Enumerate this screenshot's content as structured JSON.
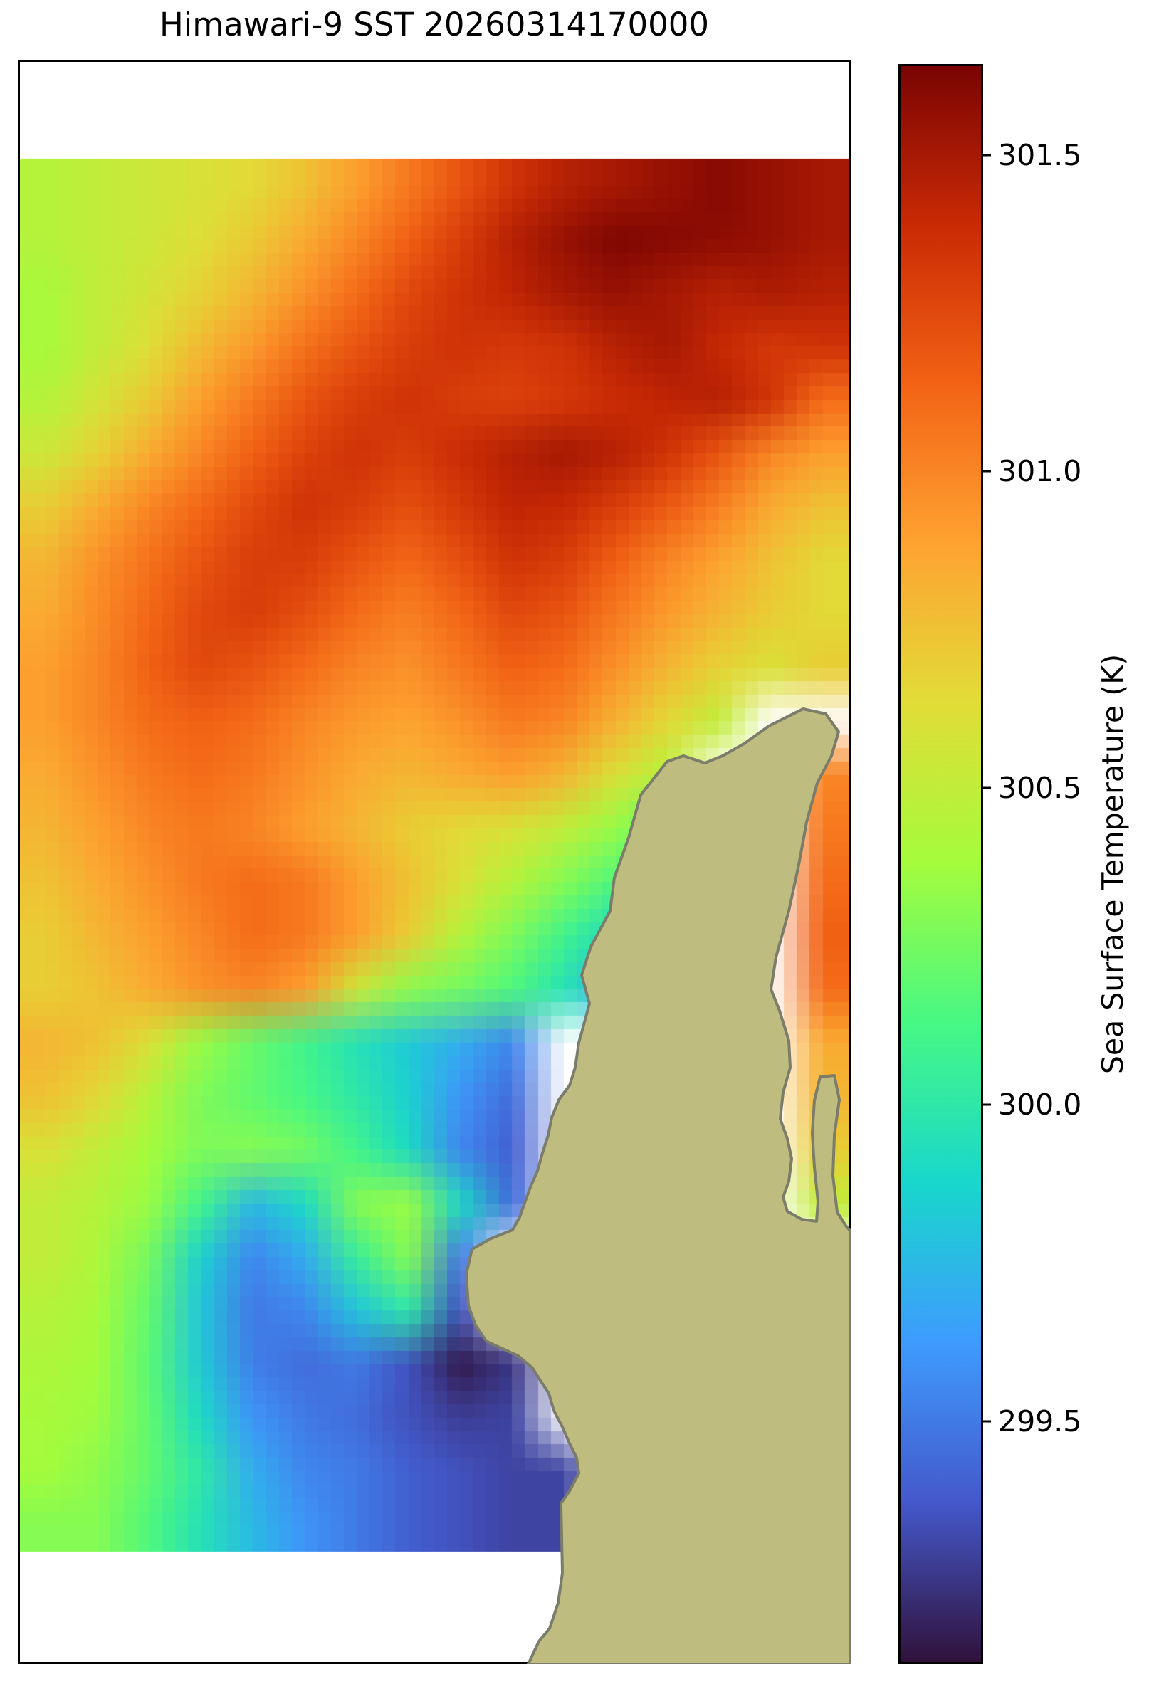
{
  "figure": {
    "title": "Himawari-9 SST 20260314170000",
    "background_color": "#ffffff"
  },
  "colorbar": {
    "label": "Sea Surface Temperature (K)",
    "vmin": 299.12,
    "vmax": 301.64,
    "ticks": [
      301.5,
      301.0,
      300.5,
      300.0,
      299.5
    ],
    "tick_labels": [
      "301.5",
      "301.0",
      "300.5",
      "300.0",
      "299.5"
    ],
    "colormap": "turbo",
    "colormap_stops": [
      {
        "f": 0.0,
        "color": "#30123b"
      },
      {
        "f": 0.1,
        "color": "#4458cb"
      },
      {
        "f": 0.2,
        "color": "#3e9bfe"
      },
      {
        "f": 0.3,
        "color": "#18d7cc"
      },
      {
        "f": 0.4,
        "color": "#46f884"
      },
      {
        "f": 0.5,
        "color": "#a4fc3c"
      },
      {
        "f": 0.6,
        "color": "#e1dd37"
      },
      {
        "f": 0.7,
        "color": "#fea331"
      },
      {
        "f": 0.8,
        "color": "#f36315"
      },
      {
        "f": 0.9,
        "color": "#ca2a04"
      },
      {
        "f": 1.0,
        "color": "#7a0403"
      }
    ]
  },
  "map": {
    "land_fill_color": "#bfbc80",
    "coastline_color": "#7c7c6a",
    "no_data_color": "#ffffff",
    "land_polygon": [
      [
        1128,
        996
      ],
      [
        1160,
        1003
      ],
      [
        1178,
        1028
      ],
      [
        1168,
        1062
      ],
      [
        1148,
        1100
      ],
      [
        1133,
        1155
      ],
      [
        1122,
        1215
      ],
      [
        1108,
        1280
      ],
      [
        1090,
        1345
      ],
      [
        1083,
        1390
      ],
      [
        1095,
        1420
      ],
      [
        1108,
        1462
      ],
      [
        1110,
        1500
      ],
      [
        1100,
        1535
      ],
      [
        1096,
        1572
      ],
      [
        1106,
        1600
      ],
      [
        1112,
        1628
      ],
      [
        1108,
        1660
      ],
      [
        1100,
        1682
      ],
      [
        1106,
        1702
      ],
      [
        1126,
        1713
      ],
      [
        1147,
        1716
      ],
      [
        1149,
        1688
      ],
      [
        1144,
        1640
      ],
      [
        1141,
        1592
      ],
      [
        1144,
        1546
      ],
      [
        1152,
        1513
      ],
      [
        1172,
        1511
      ],
      [
        1179,
        1545
      ],
      [
        1172,
        1595
      ],
      [
        1170,
        1652
      ],
      [
        1176,
        1703
      ],
      [
        1188,
        1722
      ],
      [
        1195,
        1730
      ],
      [
        1195,
        2338
      ],
      [
        742,
        2338
      ],
      [
        757,
        2306
      ],
      [
        772,
        2288
      ],
      [
        784,
        2252
      ],
      [
        790,
        2210
      ],
      [
        788,
        2112
      ],
      [
        800,
        2095
      ],
      [
        813,
        2070
      ],
      [
        810,
        2048
      ],
      [
        800,
        2028
      ],
      [
        790,
        2005
      ],
      [
        778,
        1982
      ],
      [
        771,
        1958
      ],
      [
        758,
        1938
      ],
      [
        748,
        1922
      ],
      [
        728,
        1905
      ],
      [
        695,
        1890
      ],
      [
        683,
        1884
      ],
      [
        668,
        1862
      ],
      [
        658,
        1835
      ],
      [
        655,
        1790
      ],
      [
        663,
        1755
      ],
      [
        690,
        1740
      ],
      [
        720,
        1728
      ],
      [
        730,
        1710
      ],
      [
        737,
        1690
      ],
      [
        745,
        1668
      ],
      [
        755,
        1645
      ],
      [
        762,
        1620
      ],
      [
        770,
        1595
      ],
      [
        775,
        1570
      ],
      [
        785,
        1545
      ],
      [
        800,
        1525
      ],
      [
        808,
        1500
      ],
      [
        813,
        1465
      ],
      [
        820,
        1440
      ],
      [
        828,
        1410
      ],
      [
        817,
        1370
      ],
      [
        830,
        1330
      ],
      [
        857,
        1280
      ],
      [
        863,
        1233
      ],
      [
        883,
        1177
      ],
      [
        900,
        1117
      ],
      [
        937,
        1070
      ],
      [
        960,
        1062
      ],
      [
        990,
        1072
      ],
      [
        1015,
        1062
      ],
      [
        1045,
        1045
      ],
      [
        1080,
        1020
      ]
    ]
  },
  "chart_data": {
    "type": "heatmap",
    "title": "Himawari-9 SST 20260314170000",
    "value_label": "Sea Surface Temperature (K)",
    "units": "K",
    "vmin": 299.12,
    "vmax": 301.64,
    "colormap": "turbo",
    "grid_cols": 16,
    "grid_rows": 26,
    "note": "null = no data (cloud/land mask); land overlay drawn on top",
    "values": [
      [
        300.45,
        300.5,
        300.55,
        300.6,
        300.65,
        300.75,
        300.9,
        301.05,
        301.2,
        301.35,
        301.45,
        301.5,
        301.55,
        301.6,
        301.55,
        301.5
      ],
      [
        300.45,
        300.5,
        300.55,
        300.62,
        300.72,
        300.85,
        301.0,
        301.15,
        301.3,
        301.45,
        301.55,
        301.62,
        301.6,
        301.58,
        301.55,
        301.5
      ],
      [
        300.4,
        300.5,
        300.58,
        300.68,
        300.8,
        300.95,
        301.1,
        301.25,
        301.35,
        301.42,
        301.5,
        301.55,
        301.5,
        301.45,
        301.48,
        301.45
      ],
      [
        300.4,
        300.5,
        300.62,
        300.78,
        300.92,
        301.08,
        301.2,
        301.3,
        301.35,
        301.32,
        301.35,
        301.45,
        301.5,
        301.4,
        301.32,
        301.35
      ],
      [
        300.45,
        300.58,
        300.72,
        300.9,
        301.05,
        301.2,
        301.3,
        301.35,
        301.3,
        301.28,
        301.32,
        301.38,
        301.42,
        301.45,
        301.35,
        301.1
      ],
      [
        300.55,
        300.68,
        300.85,
        301.0,
        301.15,
        301.28,
        301.35,
        301.3,
        301.38,
        301.45,
        301.5,
        301.45,
        301.35,
        301.2,
        301.0,
        300.9
      ],
      [
        300.7,
        300.85,
        301.0,
        301.12,
        301.25,
        301.35,
        301.3,
        301.22,
        301.32,
        301.42,
        301.4,
        301.3,
        301.18,
        301.02,
        300.85,
        300.75
      ],
      [
        300.8,
        300.95,
        301.08,
        301.2,
        301.3,
        301.3,
        301.2,
        301.12,
        301.22,
        301.35,
        301.3,
        301.15,
        301.0,
        300.88,
        300.75,
        300.65
      ],
      [
        300.85,
        300.98,
        301.12,
        301.25,
        301.3,
        301.22,
        301.1,
        301.02,
        301.12,
        301.25,
        301.2,
        301.05,
        300.92,
        300.8,
        300.7,
        300.65
      ],
      [
        300.9,
        301.0,
        301.15,
        301.25,
        301.2,
        301.1,
        301.0,
        300.95,
        301.05,
        301.15,
        301.1,
        300.95,
        300.8,
        300.68,
        300.6,
        300.7
      ],
      [
        300.9,
        301.0,
        301.1,
        301.15,
        301.1,
        301.0,
        300.92,
        300.88,
        300.95,
        301.05,
        301.0,
        300.82,
        300.65,
        300.5,
        null,
        null
      ],
      [
        300.85,
        300.95,
        301.05,
        301.1,
        301.05,
        300.95,
        300.85,
        300.8,
        300.85,
        300.9,
        300.8,
        300.6,
        300.45,
        null,
        null,
        301.0
      ],
      [
        300.8,
        300.9,
        301.0,
        301.05,
        301.0,
        300.9,
        300.8,
        300.7,
        300.65,
        300.6,
        300.5,
        300.35,
        300.15,
        null,
        null,
        301.05
      ],
      [
        300.75,
        300.85,
        300.95,
        301.05,
        301.1,
        301.05,
        300.9,
        300.75,
        300.6,
        300.45,
        300.3,
        300.15,
        299.95,
        null,
        null,
        301.1
      ],
      [
        300.7,
        300.8,
        300.9,
        301.0,
        301.1,
        301.05,
        300.9,
        300.7,
        300.45,
        300.28,
        300.1,
        299.9,
        299.65,
        null,
        null,
        301.15
      ],
      [
        300.7,
        300.75,
        300.85,
        300.95,
        301.0,
        300.9,
        300.55,
        300.32,
        300.25,
        300.15,
        299.95,
        299.7,
        299.55,
        null,
        null,
        301.1
      ],
      [
        300.8,
        300.75,
        300.6,
        300.35,
        300.22,
        300.1,
        299.95,
        299.82,
        299.7,
        299.55,
        null,
        null,
        null,
        null,
        null,
        300.85
      ],
      [
        300.75,
        300.65,
        300.45,
        300.28,
        300.2,
        300.12,
        300.0,
        299.85,
        299.6,
        299.45,
        null,
        null,
        null,
        null,
        null,
        300.8
      ],
      [
        300.6,
        300.5,
        300.38,
        300.28,
        300.3,
        300.25,
        300.1,
        299.9,
        299.55,
        299.4,
        null,
        null,
        null,
        null,
        null,
        300.7
      ],
      [
        300.5,
        300.45,
        300.35,
        300.1,
        299.75,
        299.9,
        300.3,
        300.35,
        299.9,
        299.45,
        null,
        null,
        null,
        null,
        null,
        300.5
      ],
      [
        300.5,
        300.42,
        300.25,
        299.85,
        299.55,
        299.7,
        300.05,
        300.3,
        299.5,
        null,
        null,
        null,
        null,
        null,
        null,
        null
      ],
      [
        300.45,
        300.4,
        300.2,
        299.8,
        299.5,
        299.55,
        299.8,
        300.0,
        299.35,
        null,
        null,
        null,
        null,
        null,
        null,
        null
      ],
      [
        300.42,
        300.38,
        300.18,
        299.82,
        299.52,
        299.45,
        299.5,
        299.35,
        299.15,
        299.25,
        null,
        null,
        null,
        null,
        null,
        null
      ],
      [
        300.4,
        300.36,
        300.2,
        299.9,
        299.6,
        299.5,
        299.45,
        299.35,
        299.28,
        299.3,
        null,
        null,
        null,
        null,
        null,
        null
      ],
      [
        300.38,
        300.32,
        300.2,
        300.0,
        299.7,
        299.55,
        299.5,
        299.4,
        299.35,
        299.3,
        299.3,
        null,
        null,
        null,
        null,
        null
      ],
      [
        300.3,
        300.3,
        300.15,
        299.95,
        299.75,
        299.6,
        299.5,
        299.4,
        299.35,
        299.3,
        299.3,
        null,
        null,
        null,
        null,
        null
      ]
    ]
  },
  "layout_values": {
    "data_top_offset": 136,
    "data_height": 1957
  }
}
